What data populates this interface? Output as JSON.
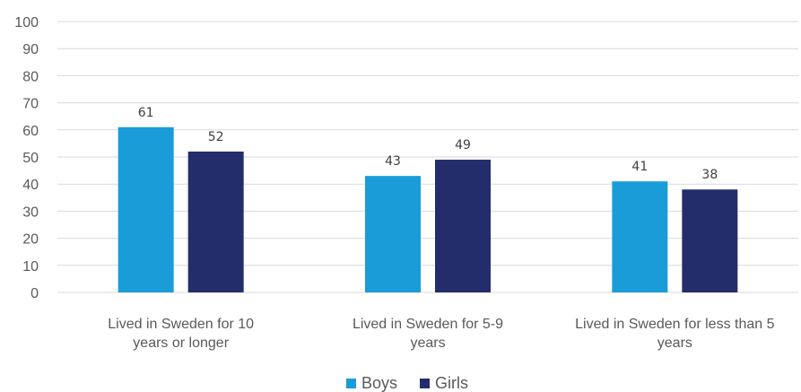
{
  "chart_data": {
    "type": "bar",
    "categories": [
      [
        "Lived in Sweden for 10",
        "years or longer"
      ],
      [
        "Lived in Sweden for 5-9",
        "years"
      ],
      [
        "Lived in Sweden for less than 5",
        "years"
      ]
    ],
    "series": [
      {
        "name": "Boys",
        "values": [
          61,
          43,
          41
        ],
        "color": "#1a9cd8"
      },
      {
        "name": "Girls",
        "values": [
          52,
          49,
          38
        ],
        "color": "#232d6b"
      }
    ],
    "ylim": [
      0,
      100
    ],
    "yticks": [
      0,
      10,
      20,
      30,
      40,
      50,
      60,
      70,
      80,
      90,
      100
    ],
    "grid": true,
    "legend": "bottom"
  },
  "colors": {
    "gridline": "#d9d9d9"
  }
}
